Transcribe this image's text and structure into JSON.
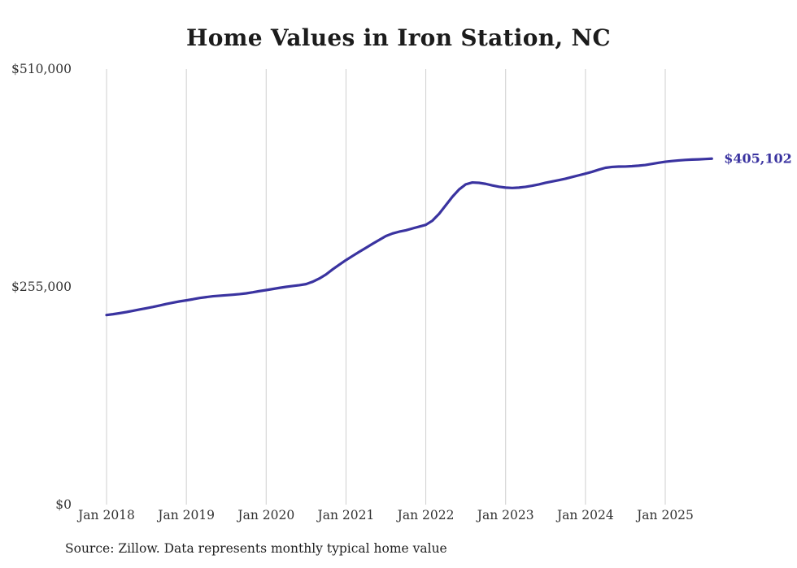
{
  "source_note": "Source: Zillow. Data represents monthly typical home value",
  "chart_data": {
    "type": "line",
    "title": "Home Values in Iron Station, NC",
    "x_tick_labels": [
      "Jan 2018",
      "Jan 2019",
      "Jan 2020",
      "Jan 2021",
      "Jan 2022",
      "Jan 2023",
      "Jan 2024",
      "Jan 2025"
    ],
    "y_ticks": [
      {
        "label": "$510,000",
        "value": 510000
      },
      {
        "label": "$255,000",
        "value": 255000
      },
      {
        "label": "$0",
        "value": 0
      }
    ],
    "ylim": [
      0,
      510000
    ],
    "grid": "vertical-only",
    "legend": "none",
    "line_color": "#3a33a0",
    "grid_color": "#cfcfcf",
    "axis_label_color": "#333333",
    "end_label": "$405,102",
    "end_value": 405102,
    "series": [
      {
        "name": "Typical home value",
        "frequency": "monthly",
        "start_month": "2018-01",
        "end_month": "2025-08",
        "values": [
          222000,
          223000,
          224200,
          225500,
          227000,
          228500,
          230000,
          231500,
          233200,
          235000,
          236500,
          238000,
          239200,
          240500,
          242000,
          243000,
          244000,
          244600,
          245200,
          245800,
          246500,
          247400,
          248600,
          250000,
          251200,
          252500,
          253800,
          255000,
          256000,
          257000,
          258200,
          261000,
          264800,
          269500,
          275500,
          281000,
          286300,
          291200,
          296000,
          300700,
          305400,
          310000,
          314500,
          317500,
          319600,
          321200,
          323400,
          325500,
          327600,
          332500,
          340500,
          350500,
          360500,
          369000,
          375000,
          377200,
          376800,
          375600,
          373800,
          372200,
          371200,
          370800,
          371200,
          372100,
          373400,
          375000,
          376800,
          378400,
          380000,
          381600,
          383600,
          385600,
          387600,
          389700,
          392200,
          394400,
          395400,
          395800,
          395900,
          396300,
          396900,
          397700,
          399000,
          400300,
          401500,
          402300,
          403000,
          403600,
          404000,
          404300,
          404700,
          405102
        ]
      }
    ]
  }
}
